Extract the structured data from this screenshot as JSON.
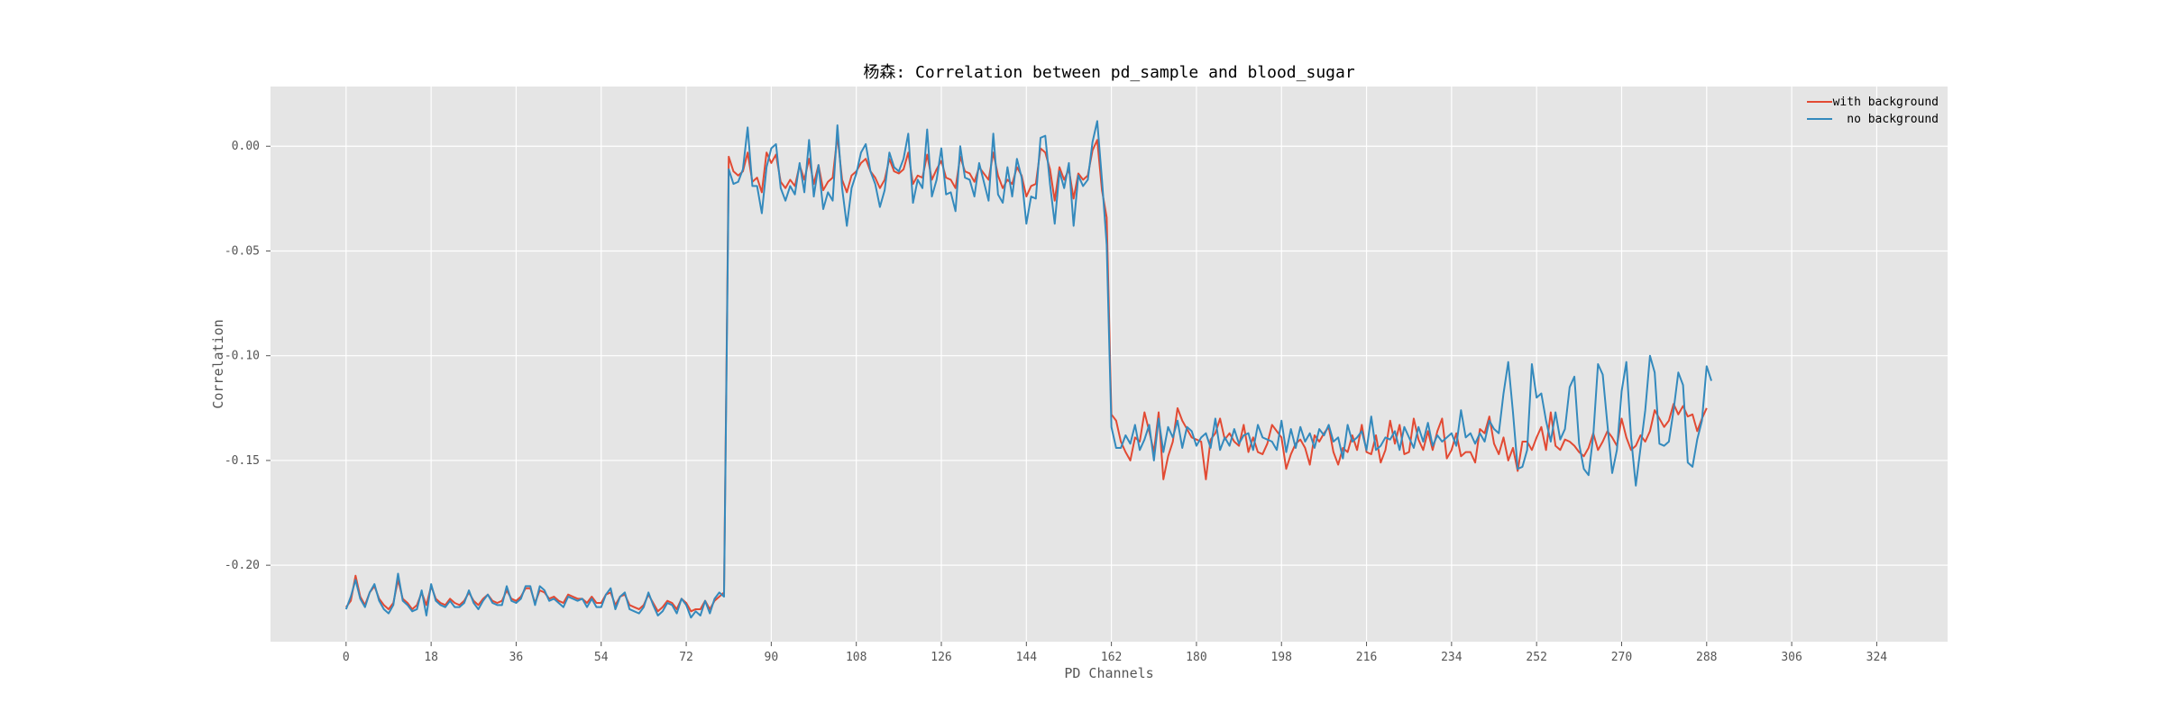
{
  "chart_data": {
    "type": "line",
    "title": "杨森: Correlation between pd_sample and blood_sugar",
    "xlabel": "PD Channels",
    "ylabel": "Correlation",
    "xlim": [
      -16,
      339
    ],
    "ylim": [
      -0.2365,
      0.0285
    ],
    "xticks": [
      0,
      18,
      36,
      54,
      72,
      90,
      108,
      126,
      144,
      162,
      180,
      198,
      216,
      234,
      252,
      270,
      288,
      306,
      324
    ],
    "xtick_labels": [
      "0",
      "18",
      "36",
      "54",
      "72",
      "90",
      "108",
      "126",
      "144",
      "162",
      "180",
      "198",
      "216",
      "234",
      "252",
      "270",
      "288",
      "306",
      "324"
    ],
    "yticks": [
      0.0,
      -0.05,
      -0.1,
      -0.15,
      -0.2
    ],
    "ytick_labels": [
      "0.00",
      "-0.05",
      "-0.10",
      "-0.15",
      "-0.20"
    ],
    "grid": true,
    "legend_position": "top-right",
    "series": [
      {
        "name": "with background",
        "color": "#E24A33",
        "segments": [
          {
            "x_start": 0,
            "values": [
              -0.22,
              -0.217,
              -0.205,
              -0.215,
              -0.219,
              -0.213,
              -0.21,
              -0.216,
              -0.219,
              -0.221,
              -0.218,
              -0.207,
              -0.216,
              -0.218,
              -0.221,
              -0.219,
              -0.213,
              -0.219,
              -0.21,
              -0.216,
              -0.218,
              -0.219,
              -0.216,
              -0.218,
              -0.219,
              -0.217,
              -0.213,
              -0.217,
              -0.219,
              -0.216,
              -0.214,
              -0.217,
              -0.218,
              -0.217,
              -0.212,
              -0.216,
              -0.217,
              -0.215,
              -0.211,
              -0.211,
              -0.218,
              -0.212,
              -0.213,
              -0.216,
              -0.215,
              -0.217,
              -0.218,
              -0.214,
              -0.215,
              -0.216,
              -0.216,
              -0.218,
              -0.215,
              -0.218,
              -0.218,
              -0.214,
              -0.213,
              -0.219,
              -0.215,
              -0.214,
              -0.219,
              -0.22,
              -0.221,
              -0.219,
              -0.214,
              -0.218,
              -0.222,
              -0.22,
              -0.217,
              -0.218,
              -0.221,
              -0.216,
              -0.218,
              -0.222,
              -0.221,
              -0.221,
              -0.217,
              -0.221,
              -0.217,
              -0.215,
              -0.213
            ]
          },
          {
            "x_start": 81,
            "values": [
              -0.005,
              -0.012,
              -0.014,
              -0.012,
              -0.003,
              -0.017,
              -0.015,
              -0.022,
              -0.003,
              -0.008,
              -0.004,
              -0.017,
              -0.02,
              -0.016,
              -0.019,
              -0.009,
              -0.016,
              -0.006,
              -0.018,
              -0.009,
              -0.021,
              -0.017,
              -0.015,
              0.005,
              -0.016,
              -0.022,
              -0.014,
              -0.012,
              -0.008,
              -0.006,
              -0.012,
              -0.015,
              -0.02,
              -0.016,
              -0.006,
              -0.012,
              -0.013,
              -0.011,
              -0.003,
              -0.018,
              -0.014,
              -0.015,
              -0.004,
              -0.016,
              -0.011,
              -0.007,
              -0.015,
              -0.016,
              -0.02,
              -0.005,
              -0.012,
              -0.013,
              -0.017,
              -0.01,
              -0.013,
              -0.016,
              -0.003,
              -0.014,
              -0.02,
              -0.016,
              -0.018,
              -0.01,
              -0.014,
              -0.024,
              -0.019,
              -0.018,
              -0.001,
              -0.003,
              -0.011,
              -0.026,
              -0.01,
              -0.016,
              -0.011,
              -0.025,
              -0.013,
              -0.016,
              -0.014,
              -0.002,
              0.003,
              -0.021,
              -0.034
            ]
          },
          {
            "x_start": 162,
            "values": [
              -0.128,
              -0.131,
              -0.141,
              -0.146,
              -0.15,
              -0.139,
              -0.141,
              -0.127,
              -0.136,
              -0.146,
              -0.127,
              -0.159,
              -0.148,
              -0.141,
              -0.125,
              -0.131,
              -0.135,
              -0.139,
              -0.14,
              -0.141,
              -0.159,
              -0.14,
              -0.137,
              -0.13,
              -0.14,
              -0.137,
              -0.141,
              -0.143,
              -0.133,
              -0.146,
              -0.139,
              -0.146,
              -0.147,
              -0.142,
              -0.133,
              -0.136,
              -0.139,
              -0.154,
              -0.147,
              -0.142,
              -0.14,
              -0.144,
              -0.152,
              -0.138,
              -0.141,
              -0.137,
              -0.134,
              -0.146,
              -0.152,
              -0.144,
              -0.146,
              -0.138,
              -0.145,
              -0.133,
              -0.146,
              -0.147,
              -0.138,
              -0.151,
              -0.145,
              -0.131,
              -0.142,
              -0.133,
              -0.147,
              -0.146,
              -0.13,
              -0.14,
              -0.145,
              -0.136,
              -0.145,
              -0.136,
              -0.13,
              -0.149,
              -0.145,
              -0.137,
              -0.148,
              -0.146,
              -0.146,
              -0.151,
              -0.135,
              -0.137,
              -0.129,
              -0.142,
              -0.147,
              -0.139,
              -0.15,
              -0.144,
              -0.155,
              -0.141,
              -0.141,
              -0.145,
              -0.139,
              -0.134,
              -0.145,
              -0.127,
              -0.143,
              -0.145,
              -0.14,
              -0.141,
              -0.143,
              -0.146,
              -0.148,
              -0.144,
              -0.137,
              -0.145,
              -0.141,
              -0.136,
              -0.139,
              -0.143,
              -0.13,
              -0.139,
              -0.145,
              -0.143,
              -0.138,
              -0.141,
              -0.136,
              -0.126,
              -0.13,
              -0.134,
              -0.131,
              -0.123,
              -0.128,
              -0.124,
              -0.129,
              -0.128,
              -0.136,
              -0.13,
              -0.125
            ]
          }
        ]
      },
      {
        "name": "no background",
        "color": "#348ABD",
        "segments": [
          {
            "x_start": 0,
            "values": [
              -0.221,
              -0.215,
              -0.207,
              -0.216,
              -0.22,
              -0.213,
              -0.209,
              -0.217,
              -0.221,
              -0.223,
              -0.219,
              -0.204,
              -0.217,
              -0.219,
              -0.222,
              -0.221,
              -0.212,
              -0.224,
              -0.209,
              -0.217,
              -0.219,
              -0.22,
              -0.217,
              -0.22,
              -0.22,
              -0.218,
              -0.212,
              -0.218,
              -0.221,
              -0.217,
              -0.214,
              -0.218,
              -0.219,
              -0.219,
              -0.21,
              -0.217,
              -0.218,
              -0.216,
              -0.21,
              -0.21,
              -0.219,
              -0.21,
              -0.212,
              -0.217,
              -0.216,
              -0.218,
              -0.22,
              -0.215,
              -0.216,
              -0.217,
              -0.216,
              -0.22,
              -0.216,
              -0.22,
              -0.22,
              -0.214,
              -0.211,
              -0.221,
              -0.215,
              -0.213,
              -0.221,
              -0.222,
              -0.223,
              -0.22,
              -0.213,
              -0.219,
              -0.224,
              -0.222,
              -0.218,
              -0.219,
              -0.223,
              -0.216,
              -0.219,
              -0.225,
              -0.222,
              -0.224,
              -0.217,
              -0.223,
              -0.216,
              -0.213,
              -0.215
            ]
          },
          {
            "x_start": 81,
            "values": [
              -0.011,
              -0.018,
              -0.017,
              -0.011,
              0.009,
              -0.019,
              -0.019,
              -0.032,
              -0.01,
              -0.001,
              0.001,
              -0.02,
              -0.026,
              -0.019,
              -0.023,
              -0.008,
              -0.022,
              0.003,
              -0.024,
              -0.009,
              -0.03,
              -0.022,
              -0.026,
              0.01,
              -0.02,
              -0.038,
              -0.02,
              -0.013,
              -0.003,
              0.001,
              -0.012,
              -0.018,
              -0.029,
              -0.021,
              -0.003,
              -0.01,
              -0.012,
              -0.006,
              0.006,
              -0.027,
              -0.016,
              -0.02,
              0.008,
              -0.024,
              -0.016,
              -0.001,
              -0.023,
              -0.022,
              -0.031,
              0.0,
              -0.015,
              -0.016,
              -0.024,
              -0.008,
              -0.017,
              -0.026,
              0.006,
              -0.023,
              -0.027,
              -0.01,
              -0.024,
              -0.006,
              -0.015,
              -0.037,
              -0.024,
              -0.025,
              0.004,
              0.005,
              -0.018,
              -0.037,
              -0.012,
              -0.02,
              -0.008,
              -0.038,
              -0.014,
              -0.019,
              -0.016,
              0.002,
              0.012,
              -0.016,
              -0.047
            ]
          },
          {
            "x_start": 162,
            "values": [
              -0.134,
              -0.144,
              -0.144,
              -0.138,
              -0.142,
              -0.133,
              -0.145,
              -0.14,
              -0.133,
              -0.15,
              -0.13,
              -0.146,
              -0.134,
              -0.139,
              -0.131,
              -0.144,
              -0.134,
              -0.136,
              -0.143,
              -0.139,
              -0.137,
              -0.144,
              -0.13,
              -0.145,
              -0.139,
              -0.143,
              -0.135,
              -0.142,
              -0.138,
              -0.137,
              -0.145,
              -0.133,
              -0.139,
              -0.14,
              -0.141,
              -0.145,
              -0.131,
              -0.146,
              -0.135,
              -0.144,
              -0.134,
              -0.141,
              -0.137,
              -0.144,
              -0.135,
              -0.138,
              -0.133,
              -0.141,
              -0.139,
              -0.149,
              -0.133,
              -0.141,
              -0.139,
              -0.136,
              -0.145,
              -0.129,
              -0.145,
              -0.143,
              -0.139,
              -0.14,
              -0.136,
              -0.145,
              -0.134,
              -0.139,
              -0.144,
              -0.134,
              -0.141,
              -0.132,
              -0.143,
              -0.138,
              -0.141,
              -0.139,
              -0.137,
              -0.143,
              -0.126,
              -0.139,
              -0.137,
              -0.142,
              -0.137,
              -0.141,
              -0.131,
              -0.135,
              -0.137,
              -0.118,
              -0.103,
              -0.127,
              -0.154,
              -0.153,
              -0.145,
              -0.104,
              -0.12,
              -0.118,
              -0.131,
              -0.141,
              -0.127,
              -0.14,
              -0.135,
              -0.115,
              -0.11,
              -0.142,
              -0.154,
              -0.157,
              -0.138,
              -0.104,
              -0.109,
              -0.133,
              -0.156,
              -0.145,
              -0.117,
              -0.103,
              -0.139,
              -0.162,
              -0.144,
              -0.126,
              -0.1,
              -0.108,
              -0.142,
              -0.143,
              -0.141,
              -0.126,
              -0.108,
              -0.114,
              -0.151,
              -0.153,
              -0.14,
              -0.131,
              -0.105,
              -0.112
            ]
          }
        ]
      }
    ]
  }
}
